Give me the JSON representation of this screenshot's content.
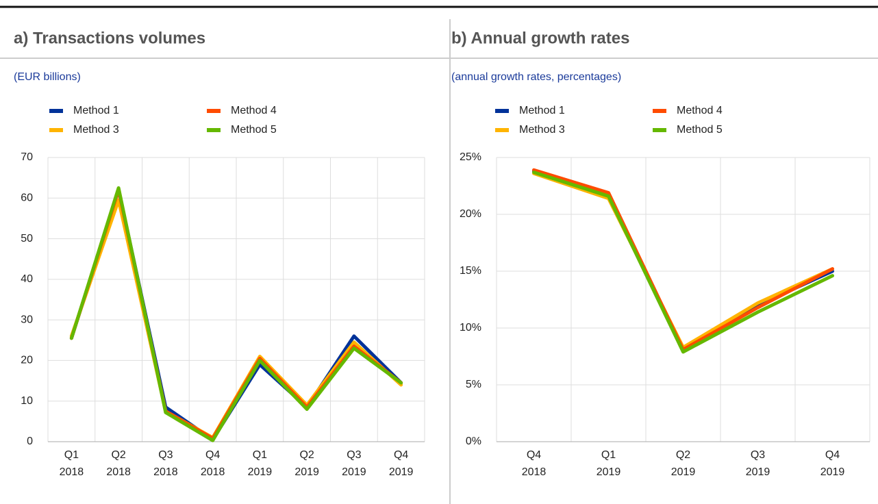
{
  "chart_data": [
    {
      "type": "line",
      "title": "a) Transactions volumes",
      "subtitle": "(EUR billions)",
      "categories": [
        "Q1 2018",
        "Q2 2018",
        "Q3 2018",
        "Q4 2018",
        "Q1 2019",
        "Q2 2019",
        "Q3 2019",
        "Q4 2019"
      ],
      "series": [
        {
          "name": "Method 1",
          "color": "#003299",
          "values": [
            25.5,
            62,
            8.5,
            0.5,
            19,
            8.5,
            26,
            14.5
          ]
        },
        {
          "name": "Method 3",
          "color": "#ffb400",
          "values": [
            26,
            59.5,
            7.5,
            1,
            21,
            9,
            24.5,
            14
          ]
        },
        {
          "name": "Method 4",
          "color": "#ff4b00",
          "values": [
            25.5,
            62,
            7.5,
            0.8,
            20.5,
            8.5,
            23.5,
            14.5
          ]
        },
        {
          "name": "Method 5",
          "color": "#65b800",
          "values": [
            25.5,
            62.5,
            7.2,
            0.3,
            20,
            8,
            23,
            14.5
          ]
        }
      ],
      "ylim": [
        0,
        70
      ],
      "yticks": [
        0,
        10,
        20,
        30,
        40,
        50,
        60,
        70
      ],
      "grid": true
    },
    {
      "type": "line",
      "title": "b) Annual growth rates",
      "subtitle": "(annual growth rates, percentages)",
      "categories": [
        "Q4 2018",
        "Q1 2019",
        "Q2 2019",
        "Q3 2019",
        "Q4 2019"
      ],
      "series": [
        {
          "name": "Method 1",
          "color": "#003299",
          "values": [
            23.8,
            21.7,
            8.0,
            12.0,
            15.0
          ]
        },
        {
          "name": "Method 3",
          "color": "#ffb400",
          "values": [
            23.6,
            21.4,
            8.3,
            12.2,
            15.2
          ]
        },
        {
          "name": "Method 4",
          "color": "#ff4b00",
          "values": [
            23.9,
            21.9,
            8.1,
            11.8,
            15.2
          ]
        },
        {
          "name": "Method 5",
          "color": "#65b800",
          "values": [
            23.7,
            21.6,
            7.9,
            11.4,
            14.6
          ]
        }
      ],
      "ylim": [
        0,
        25
      ],
      "yticks": [
        {
          "value": 0,
          "label": "0%"
        },
        {
          "value": 5,
          "label": "5%"
        },
        {
          "value": 10,
          "label": "10%"
        },
        {
          "value": 15,
          "label": "15%"
        },
        {
          "value": 20,
          "label": "20%"
        },
        {
          "value": 25,
          "label": "25%"
        }
      ],
      "grid": true
    }
  ]
}
